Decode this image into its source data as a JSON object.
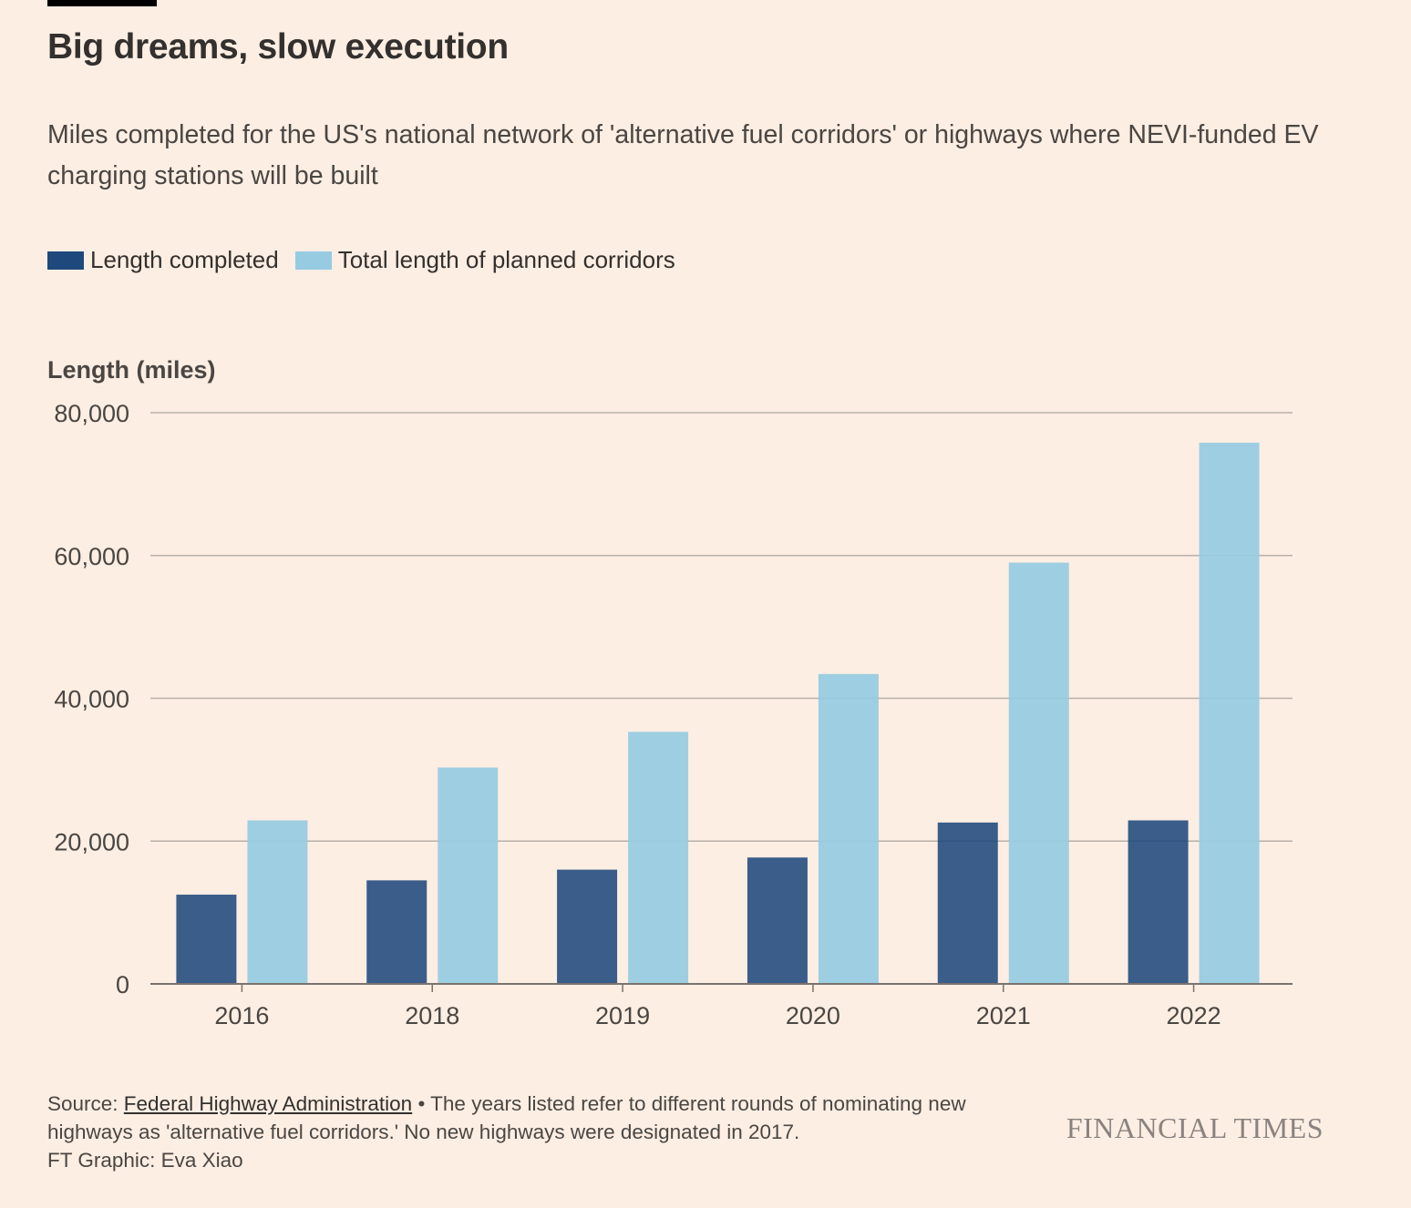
{
  "header": {
    "title": "Big dreams, slow execution",
    "subtitle": "Miles completed for the US's national network of 'alternative fuel corridors' or highways where NEVI-funded EV charging stations will be built"
  },
  "legend": {
    "completed": "Length completed",
    "planned": "Total length of planned corridors"
  },
  "colors": {
    "completed": "#1f497d",
    "planned": "#96cbe1",
    "background": "#fdeee3",
    "gridline": "#b8b0a8"
  },
  "chart_data": {
    "type": "bar",
    "ylabel": "Length (miles)",
    "xlabel": "",
    "categories": [
      "2016",
      "2018",
      "2019",
      "2020",
      "2021",
      "2022"
    ],
    "series": [
      {
        "name": "Length completed",
        "values": [
          12500,
          14500,
          16000,
          17700,
          22600,
          22900
        ]
      },
      {
        "name": "Total length of planned corridors",
        "values": [
          22900,
          30300,
          35300,
          43400,
          59000,
          75800
        ]
      }
    ],
    "ylim": [
      0,
      80000
    ],
    "yticks": [
      0,
      20000,
      40000,
      60000,
      80000
    ],
    "ytick_labels": [
      "0",
      "20,000",
      "40,000",
      "60,000",
      "80,000"
    ],
    "grid": true
  },
  "footer": {
    "source_prefix": "Source: ",
    "source_link": "Federal Highway Administration",
    "note": " • The years listed refer to different rounds of nominating new highways as 'alternative fuel corridors.' No new highways were designated in 2017.",
    "credit": "FT Graphic: Eva Xiao",
    "brand": "FINANCIAL TIMES"
  }
}
